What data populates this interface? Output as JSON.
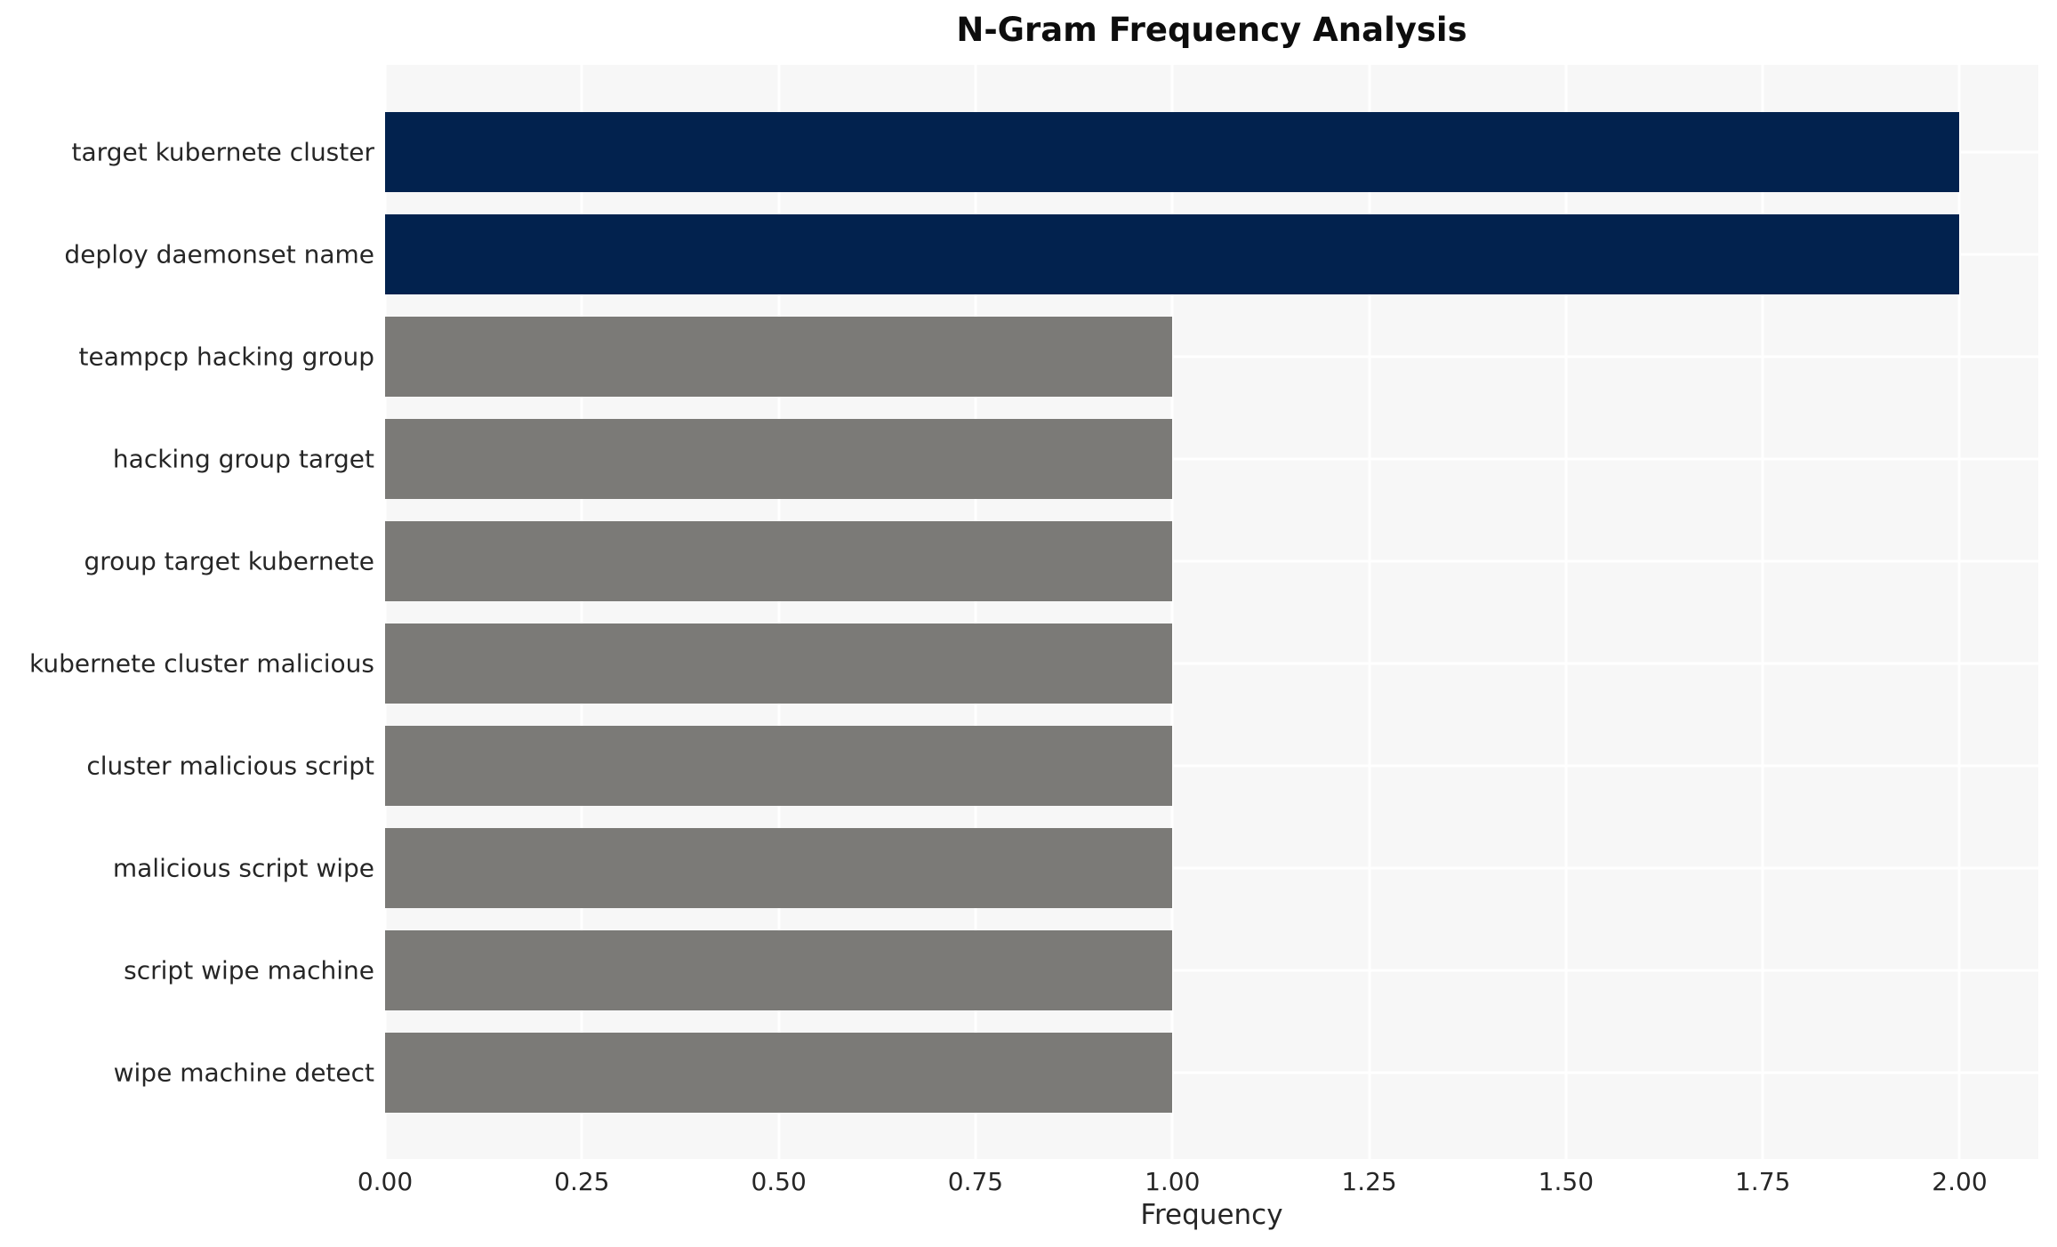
{
  "chart_data": {
    "type": "bar",
    "orientation": "horizontal",
    "title": "N-Gram Frequency Analysis",
    "xlabel": "Frequency",
    "ylabel": "",
    "categories": [
      "target kubernete cluster",
      "deploy daemonset name",
      "teampcp hacking group",
      "hacking group target",
      "group target kubernete",
      "kubernete cluster malicious",
      "cluster malicious script",
      "malicious script wipe",
      "script wipe machine",
      "wipe machine detect"
    ],
    "values": [
      2,
      2,
      1,
      1,
      1,
      1,
      1,
      1,
      1,
      1
    ],
    "bar_colors": [
      "#02224e",
      "#02224e",
      "#7b7a77",
      "#7b7a77",
      "#7b7a77",
      "#7b7a77",
      "#7b7a77",
      "#7b7a77",
      "#7b7a77",
      "#7b7a77"
    ],
    "colors": {
      "highlight": "#02224e",
      "default": "#7b7a77",
      "plot_background": "#f7f7f7",
      "grid": "#ffffff",
      "text": "#262626"
    },
    "xlim": [
      0,
      2.1
    ],
    "xticks": [
      "0.00",
      "0.25",
      "0.50",
      "0.75",
      "1.00",
      "1.25",
      "1.50",
      "1.75",
      "2.00"
    ],
    "xtick_values": [
      0,
      0.25,
      0.5,
      0.75,
      1.0,
      1.25,
      1.5,
      1.75,
      2.0
    ],
    "grid": true,
    "legend": "none"
  }
}
